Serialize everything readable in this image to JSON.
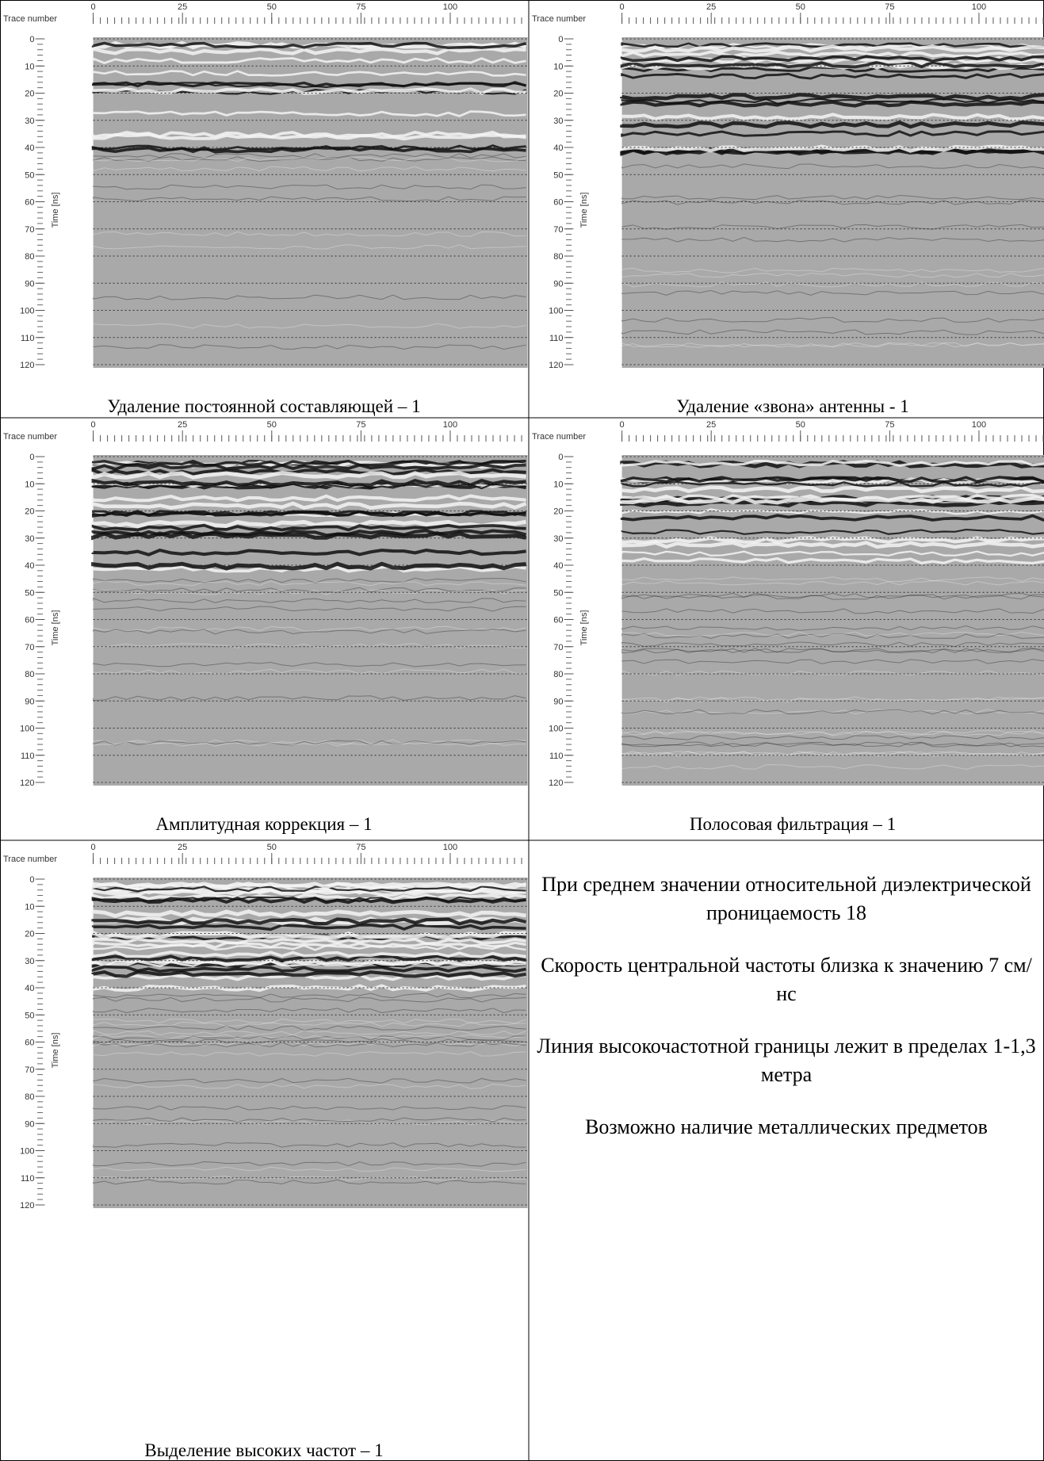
{
  "axes": {
    "x_label": "Trace number",
    "y_label": "Time [ns]",
    "x_ticks": [
      0,
      25,
      50,
      75,
      100
    ],
    "y_ticks": [
      0,
      10,
      20,
      30,
      40,
      50,
      60,
      70,
      80,
      90,
      100,
      110,
      120
    ]
  },
  "panels": [
    {
      "caption": "Удаление постоянной составляющей – 1"
    },
    {
      "caption": "Удаление «звона» антенны - 1"
    },
    {
      "caption": "Амплитудная коррекция – 1"
    },
    {
      "caption": "Полосовая фильтрация – 1"
    },
    {
      "caption": "Выделение высоких частот – 1"
    }
  ],
  "notes": [
    "При среднем значении относительной диэлектрической проницаемость 18",
    "Скорость центральной частоты близка к значению 7 см/нс",
    "Линия высокочастотной границы лежит в пределах 1-1,3 метра",
    "Возможно наличие металлических предметов"
  ]
}
